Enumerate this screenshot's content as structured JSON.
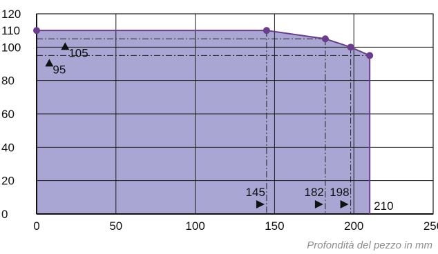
{
  "chart_data": {
    "type": "area",
    "x": [
      0,
      145,
      182,
      198,
      210
    ],
    "y": [
      110,
      110,
      105,
      100,
      95
    ],
    "xlim": [
      0,
      250
    ],
    "ylim": [
      0,
      120
    ],
    "x_ticks": [
      0,
      50,
      100,
      150,
      200,
      250
    ],
    "y_ticks": [
      0,
      20,
      40,
      60,
      80,
      100,
      110,
      120
    ],
    "xlabel": "Profondità del pezzo in mm",
    "grid": true,
    "fill_color": "#a9a6d4",
    "line_color": "#6b3d8e",
    "annotations": {
      "y_markers": [
        {
          "label": "105",
          "value": 105,
          "x_pos": 18
        },
        {
          "label": "95",
          "value": 95,
          "x_pos": 8
        }
      ],
      "x_markers": [
        {
          "label": "145",
          "value": 145
        },
        {
          "label": "182",
          "value": 182
        },
        {
          "label": "198",
          "value": 198
        }
      ],
      "end_label": "210"
    }
  }
}
